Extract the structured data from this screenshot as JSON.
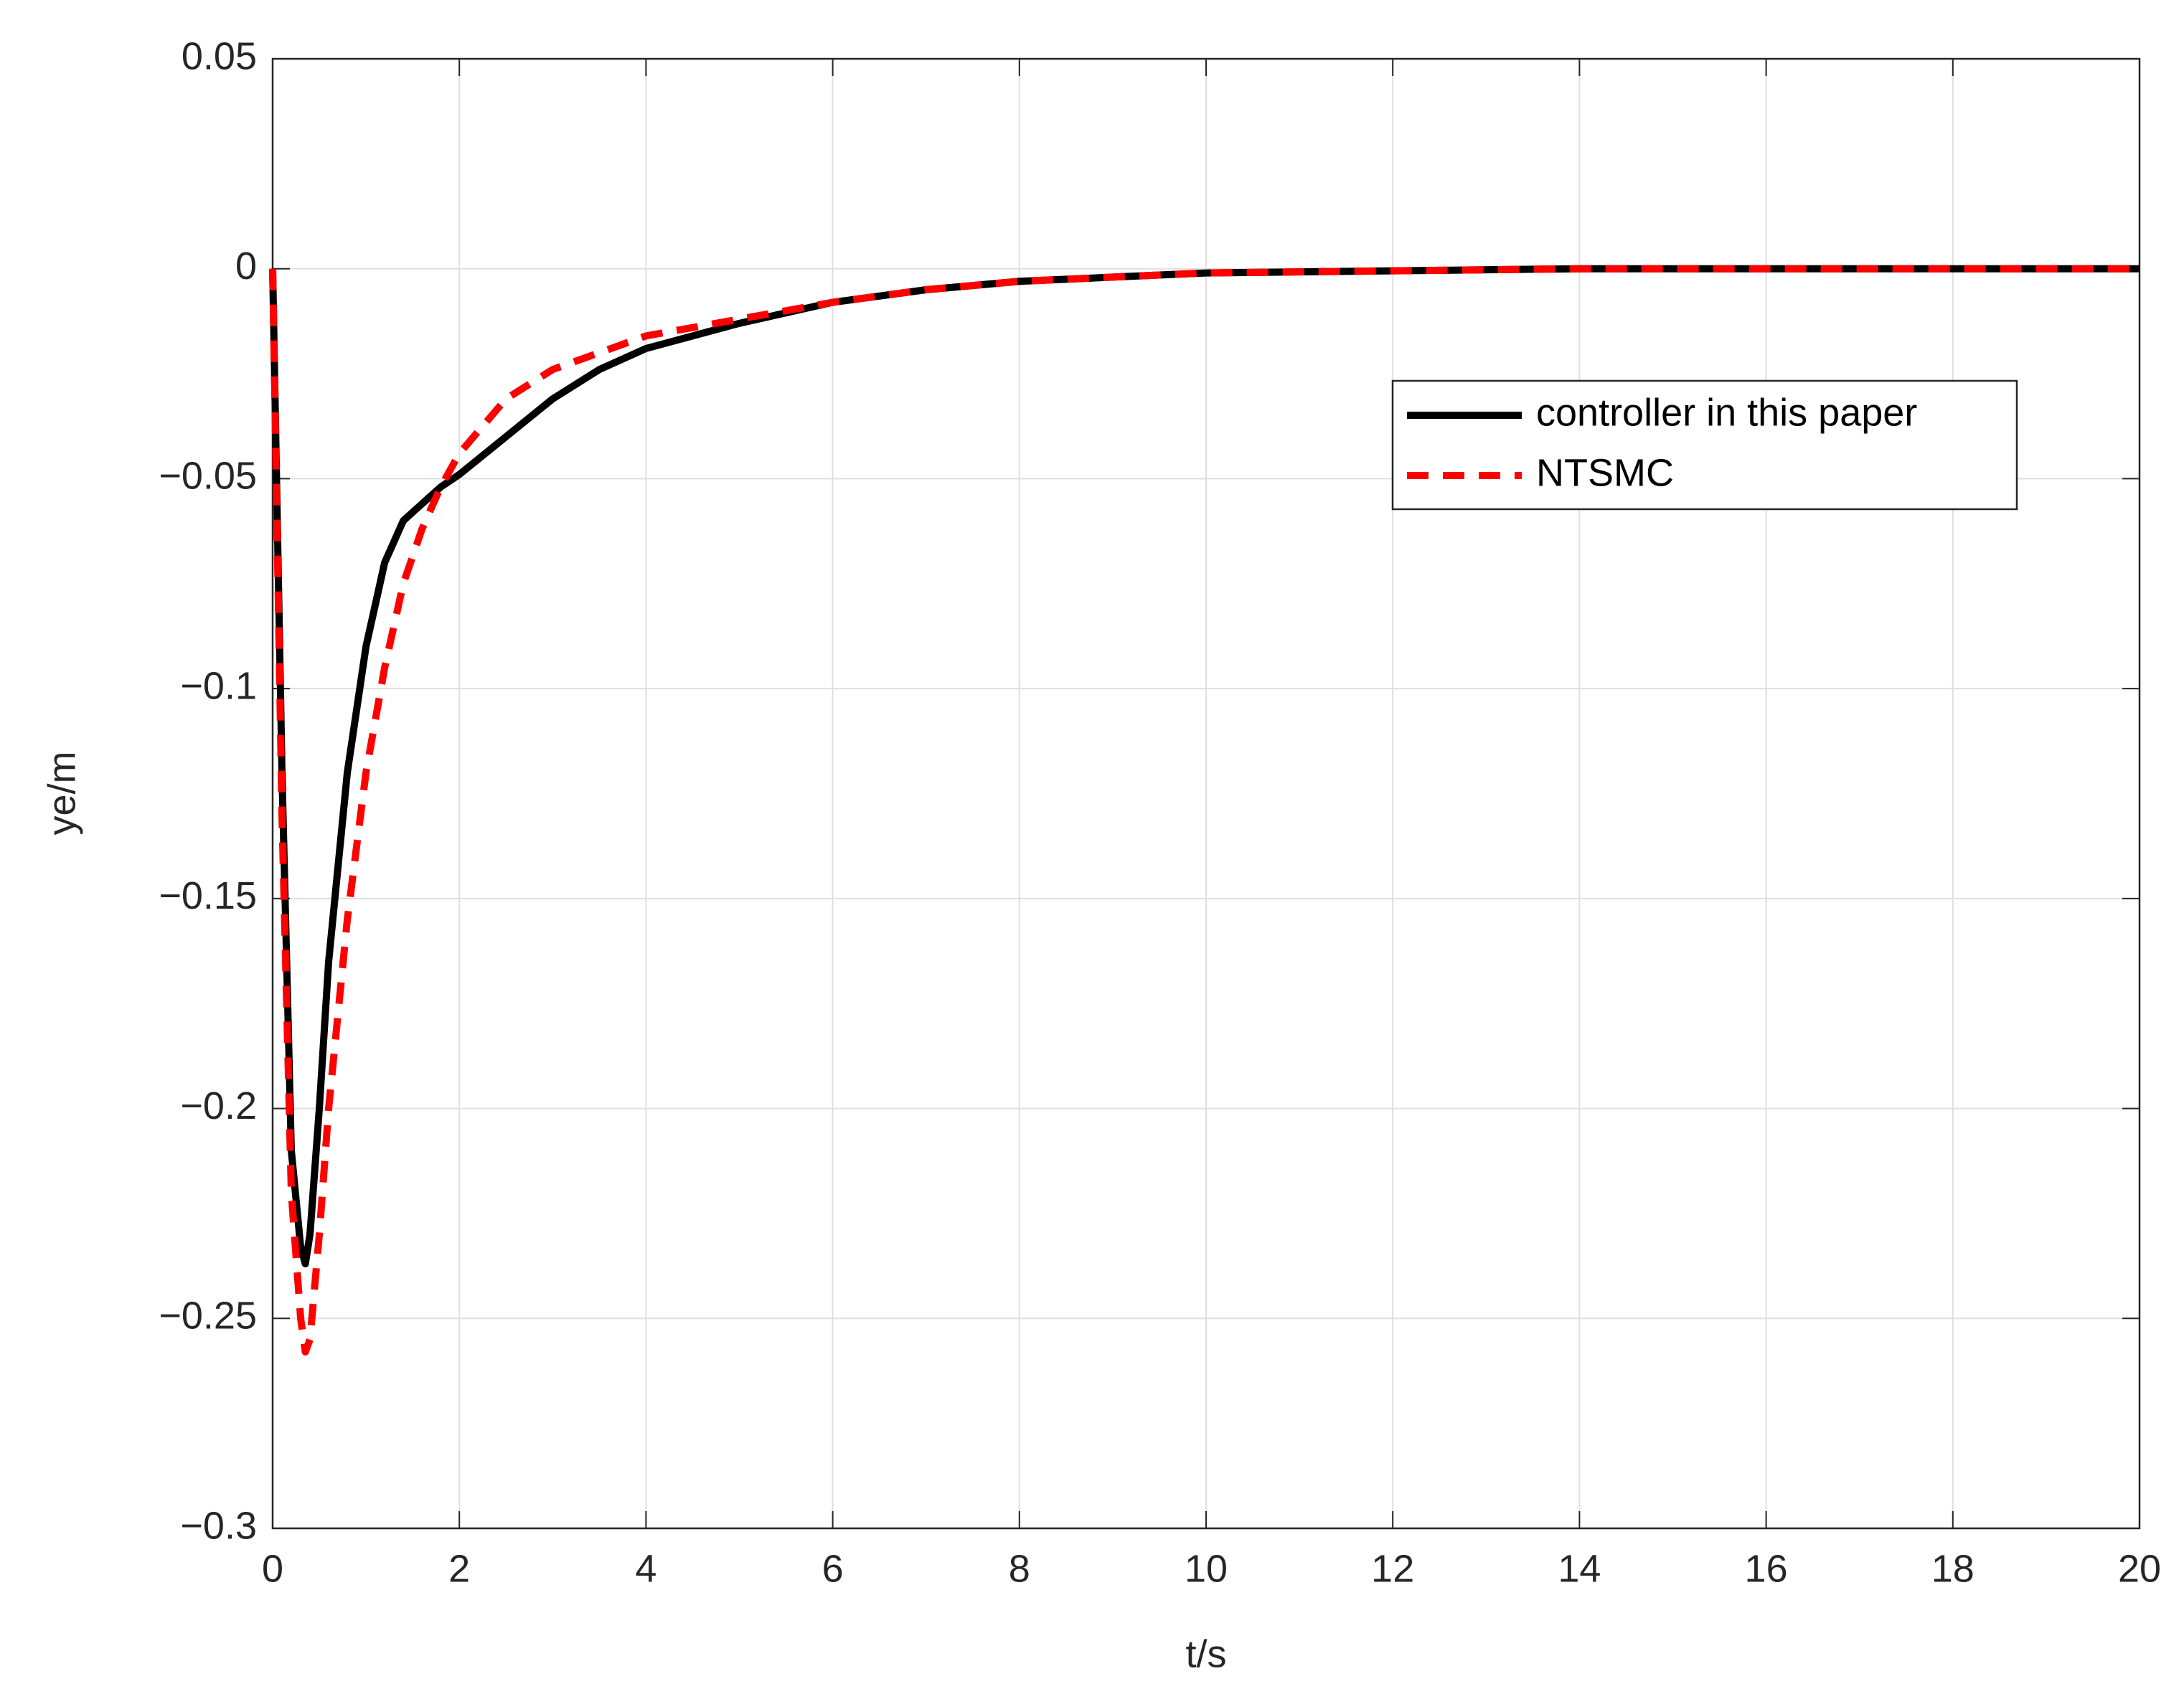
{
  "chart_data": {
    "type": "line",
    "xlabel": "t/s",
    "ylabel": "ye/m",
    "x": [
      0,
      0.1,
      0.2,
      0.3,
      0.35,
      0.4,
      0.5,
      0.6,
      0.8,
      1.0,
      1.2,
      1.4,
      1.6,
      1.8,
      2.0,
      2.5,
      3,
      3.5,
      4,
      5,
      6,
      7,
      8,
      9,
      10,
      12,
      14,
      16,
      18,
      20
    ],
    "series": [
      {
        "name": "controller in this paper",
        "color": "#000000",
        "dash": false,
        "values": [
          0,
          -0.12,
          -0.21,
          -0.233,
          -0.237,
          -0.23,
          -0.2,
          -0.165,
          -0.12,
          -0.09,
          -0.07,
          -0.06,
          -0.056,
          -0.052,
          -0.049,
          -0.04,
          -0.031,
          -0.024,
          -0.019,
          -0.013,
          -0.008,
          -0.005,
          -0.003,
          -0.002,
          -0.001,
          -0.0005,
          0,
          0,
          0,
          0
        ]
      },
      {
        "name": "NTSMC",
        "color": "#ff0000",
        "dash": true,
        "values": [
          0,
          -0.13,
          -0.22,
          -0.25,
          -0.258,
          -0.255,
          -0.23,
          -0.2,
          -0.155,
          -0.12,
          -0.095,
          -0.075,
          -0.062,
          -0.052,
          -0.044,
          -0.031,
          -0.024,
          -0.02,
          -0.016,
          -0.012,
          -0.008,
          -0.005,
          -0.003,
          -0.002,
          -0.001,
          -0.0005,
          0,
          0,
          0,
          0
        ]
      }
    ],
    "xlim": [
      0,
      20
    ],
    "xticks": [
      0,
      2,
      4,
      6,
      8,
      10,
      12,
      14,
      16,
      18,
      20
    ],
    "ylim": [
      -0.3,
      0.05
    ],
    "yticks": [
      {
        "value": -0.3,
        "label": "−0.3"
      },
      {
        "value": -0.25,
        "label": "−0.25"
      },
      {
        "value": -0.2,
        "label": "−0.2"
      },
      {
        "value": -0.15,
        "label": "−0.15"
      },
      {
        "value": -0.1,
        "label": "−0.1"
      },
      {
        "value": -0.05,
        "label": "−0.05"
      },
      0,
      0.05
    ],
    "grid": true,
    "legend": "upper right"
  }
}
